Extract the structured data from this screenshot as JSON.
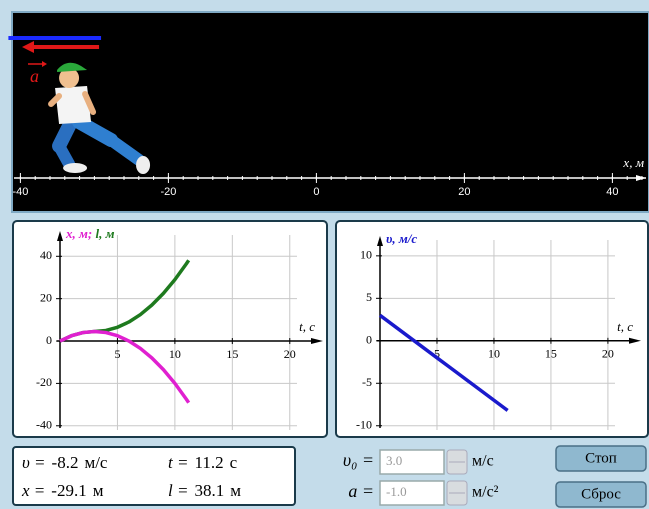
{
  "track": {
    "xlim": [
      -41,
      44
    ],
    "xticks": [
      -40,
      -20,
      0,
      20,
      40
    ],
    "minor_tick_step": 2,
    "axis_label": "x, м",
    "accel_label": "a"
  },
  "chart_data": [
    {
      "type": "line",
      "y_label_parts": [
        {
          "text": "x, м;",
          "color": "#e020d0"
        },
        {
          "text": " l, м",
          "color": "#1e7a1e"
        }
      ],
      "x_label": "t, с",
      "x": [
        0,
        1,
        2,
        3,
        4,
        5,
        6,
        7,
        8,
        9,
        10,
        11,
        11.2
      ],
      "series": [
        {
          "color": "#1e7a1e",
          "values": [
            0,
            2.5,
            4,
            4.5,
            5,
            6.5,
            9,
            12.5,
            17,
            22.5,
            29,
            36.5,
            38.1
          ]
        },
        {
          "color": "#e020d0",
          "values": [
            0,
            2.5,
            4,
            4.5,
            4,
            2.5,
            0,
            -3.5,
            -8,
            -13.5,
            -20,
            -27.5,
            -29.1
          ]
        }
      ],
      "xlim": [
        0,
        21.5
      ],
      "xticks": [
        5,
        10,
        15,
        20
      ],
      "ylim": [
        -42,
        51
      ],
      "yticks": [
        -40,
        -20,
        0,
        20,
        40
      ],
      "grid": true
    },
    {
      "type": "line",
      "y_label_parts": [
        {
          "text": "υ, м/с",
          "color": "#1a1acc"
        }
      ],
      "x_label": "t, с",
      "x": [
        0,
        1,
        2,
        3,
        4,
        5,
        6,
        7,
        8,
        9,
        10,
        11,
        11.2
      ],
      "series": [
        {
          "color": "#1a1acc",
          "values": [
            3,
            2,
            1,
            0,
            -1,
            -2,
            -3,
            -4,
            -5,
            -6,
            -7,
            -8,
            -8.2
          ]
        }
      ],
      "xlim": [
        0,
        21.5
      ],
      "xticks": [
        5,
        10,
        15,
        20
      ],
      "ylim": [
        -10.5,
        12.1
      ],
      "yticks": [
        -10,
        -5,
        0,
        5,
        10
      ],
      "grid": true
    }
  ],
  "readouts": {
    "rows": [
      [
        {
          "label": "υ =",
          "value": -8.2,
          "unit": "м/с"
        },
        {
          "label": "t =",
          "value": 11.2,
          "unit": "с"
        }
      ],
      [
        {
          "label": "x =",
          "value": -29.1,
          "unit": "м"
        },
        {
          "label": "l =",
          "value": 38.1,
          "unit": "м"
        }
      ]
    ]
  },
  "controls": [
    {
      "label": "υ₀ =",
      "value": "3.0",
      "unit": "м/с"
    },
    {
      "label": "a =",
      "value": "-1.0",
      "unit": "м/с²"
    }
  ],
  "buttons": [
    "Стоп",
    "Сброс"
  ]
}
